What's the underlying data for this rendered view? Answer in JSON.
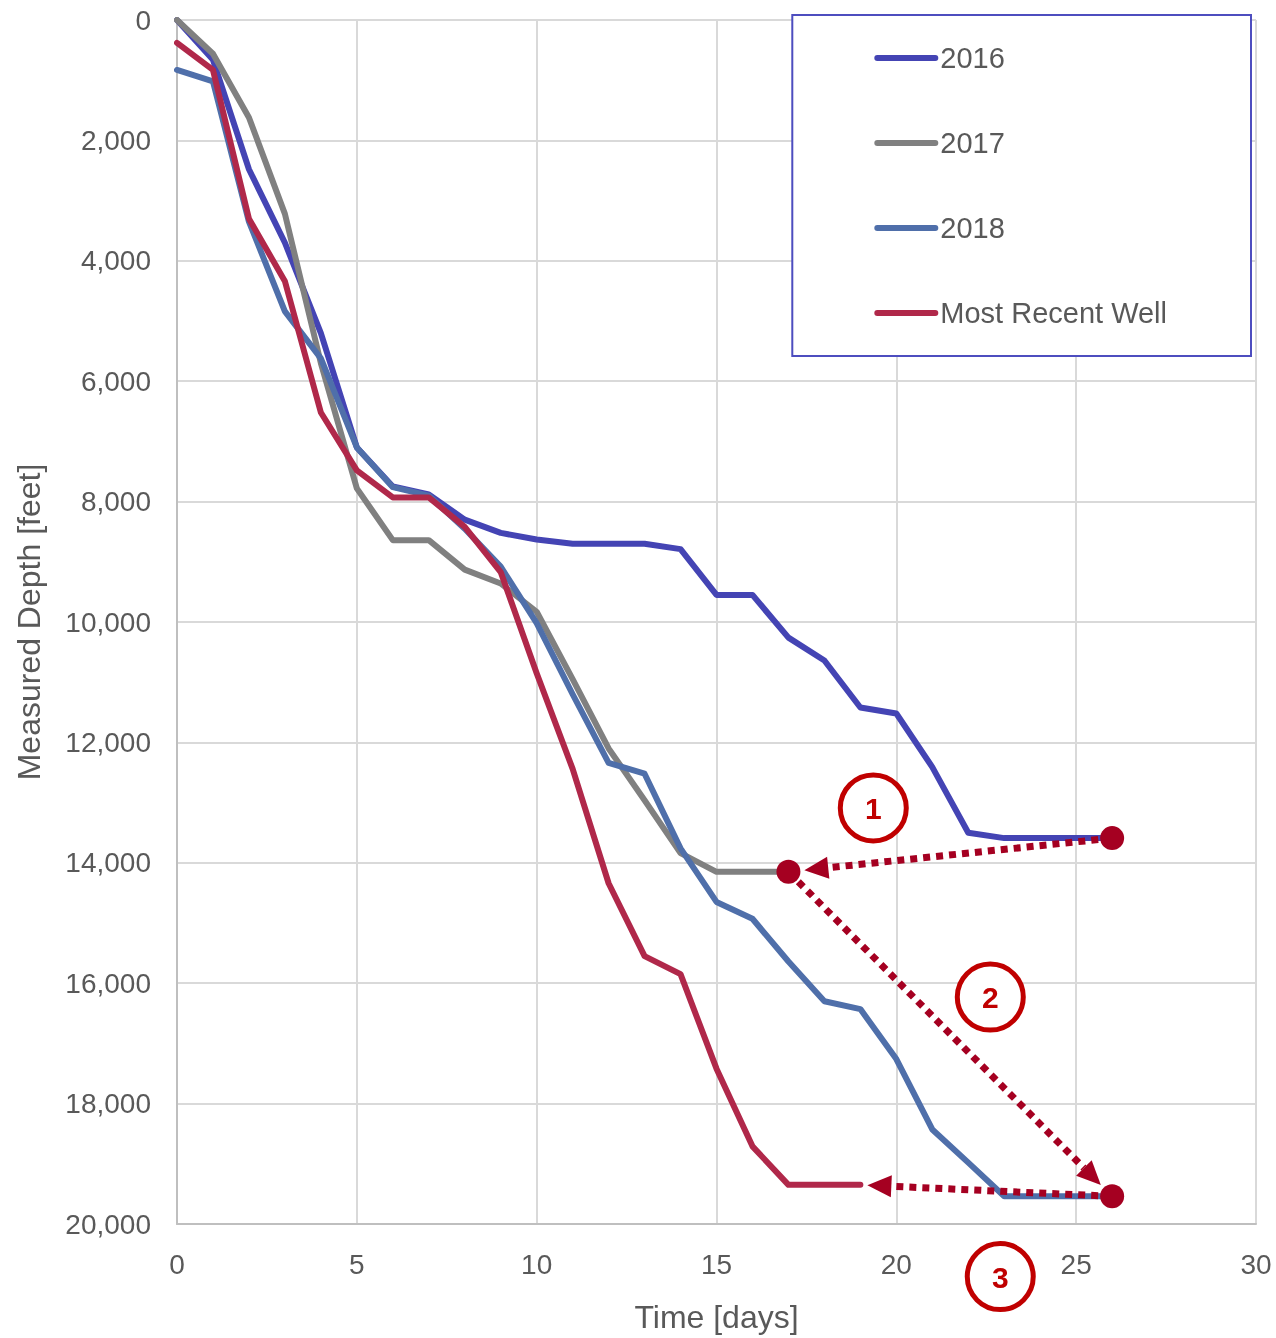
{
  "chart_data": {
    "type": "line",
    "xlabel": "Time [days]",
    "ylabel": "Measured Depth [feet]",
    "xlim": [
      0,
      30
    ],
    "xticks": [
      0,
      5,
      10,
      15,
      20,
      25,
      30
    ],
    "ylim": [
      20000,
      0
    ],
    "yticks": [
      0,
      {
        "value": 2000,
        "label": "2,000"
      },
      {
        "value": 4000,
        "label": "4,000"
      },
      {
        "value": 6000,
        "label": "6,000"
      },
      {
        "value": 8000,
        "label": "8,000"
      },
      {
        "value": 10000,
        "label": "10,000"
      },
      {
        "value": 12000,
        "label": "12,000"
      },
      {
        "value": 14000,
        "label": "14,000"
      },
      {
        "value": 16000,
        "label": "16,000"
      },
      {
        "value": 18000,
        "label": "18,000"
      },
      {
        "value": 20000,
        "label": "20,000"
      }
    ],
    "grid": true,
    "legend": "top right",
    "marker": "none",
    "line_style": "solid",
    "annotations": [
      "1",
      "2",
      "3"
    ],
    "series": [
      {
        "name": "2016",
        "color": "#4444b4",
        "x": [
          0,
          1,
          2,
          3,
          4,
          5,
          6,
          7,
          8,
          9,
          10,
          11,
          12,
          13,
          14,
          15,
          16,
          17,
          18,
          19,
          20,
          21,
          22,
          23,
          24,
          25,
          26
        ],
        "values": [
          0,
          660,
          2480,
          3700,
          5200,
          7100,
          7750,
          7880,
          8300,
          8520,
          8630,
          8700,
          8700,
          8700,
          8790,
          9550,
          9550,
          10260,
          10640,
          11420,
          11520,
          12410,
          13500,
          13590,
          13590,
          13590,
          13590
        ]
      },
      {
        "name": "2017",
        "color": "#808080",
        "x": [
          0,
          1,
          2,
          3,
          4,
          5,
          6,
          7,
          8,
          9,
          10,
          11,
          12,
          13,
          14,
          15,
          16,
          17
        ],
        "values": [
          0,
          560,
          1620,
          3220,
          5700,
          7780,
          8640,
          8640,
          9130,
          9360,
          9830,
          10950,
          12100,
          12960,
          13840,
          14150,
          14150,
          14150
        ]
      },
      {
        "name": "2018",
        "color": "#4f6faa",
        "x": [
          0,
          1,
          2,
          3,
          4,
          5,
          6,
          7,
          8,
          9,
          10,
          11,
          12,
          13,
          14,
          15,
          16,
          17,
          18,
          19,
          20,
          21,
          22,
          23,
          24,
          25,
          26
        ],
        "values": [
          830,
          1020,
          3350,
          4840,
          5620,
          7100,
          7760,
          7900,
          8450,
          9080,
          10020,
          11200,
          12340,
          12520,
          13760,
          14650,
          14930,
          15640,
          16300,
          16430,
          17260,
          18430,
          18980,
          19540,
          19540,
          19540,
          19540
        ]
      },
      {
        "name": "Most Recent Well",
        "color": "#b0284a",
        "x": [
          0,
          1,
          2,
          3,
          4,
          5,
          6,
          7,
          8,
          9,
          10,
          11,
          12,
          13,
          14,
          15,
          16,
          17,
          18,
          19
        ],
        "values": [
          380,
          830,
          3300,
          4340,
          6520,
          7480,
          7930,
          7930,
          8420,
          9170,
          10850,
          12440,
          14340,
          15550,
          15850,
          17420,
          18710,
          19350,
          19350,
          19350
        ]
      }
    ]
  }
}
